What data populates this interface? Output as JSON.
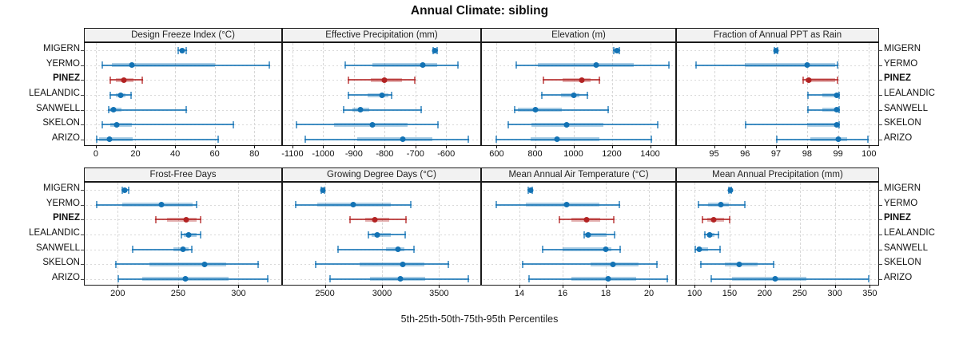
{
  "title": "Annual Climate: sibling",
  "caption": "5th-25th-50th-75th-95th Percentiles",
  "colors": {
    "default": "#1272b4",
    "highlight": "#b22222",
    "strip_bg": "#f2f2f2",
    "grid": "#d9d9d9"
  },
  "sites": [
    "MIGERN",
    "YERMO",
    "PINEZ",
    "LEALANDIC",
    "SANWELL",
    "SKELON",
    "ARIZO"
  ],
  "highlight_site": "PINEZ",
  "chart_data": {
    "type": "dot-interval",
    "note": "Each row shows 5th-25th-50th-75th-95th percentiles; thin line 5-95, thick band 25-75, dot median",
    "percentile_levels": [
      5,
      25,
      50,
      75,
      95
    ],
    "legend_position": "none",
    "grid": "dotted",
    "panels": [
      {
        "title": "Design Freeze Index (°C)",
        "xlim": [
          -5.6,
          93.6
        ],
        "ticks": [
          0,
          20,
          40,
          60,
          80
        ],
        "rows": [
          [
            41,
            42.5,
            43.5,
            44.5,
            46
          ],
          [
            3,
            8,
            18,
            60,
            88
          ],
          [
            7,
            10,
            14,
            19,
            24
          ],
          [
            7,
            10,
            12.5,
            15,
            18
          ],
          [
            6,
            7,
            9,
            13,
            46
          ],
          [
            3,
            7.5,
            10.5,
            18,
            70
          ],
          [
            0,
            1.5,
            7,
            18.5,
            62
          ]
        ]
      },
      {
        "title": "Effective Precipitation (mm)",
        "xlim": [
          -1131,
          -489
        ],
        "ticks": [
          -1100,
          -1000,
          -900,
          -800,
          -700,
          -600
        ],
        "rows": [
          [
            -646,
            -641,
            -637,
            -633,
            -628
          ],
          [
            -930,
            -840,
            -675,
            -630,
            -560
          ],
          [
            -920,
            -845,
            -800,
            -745,
            -700
          ],
          [
            -920,
            -855,
            -810,
            -788,
            -775
          ],
          [
            -935,
            -905,
            -880,
            -850,
            -680
          ],
          [
            -1090,
            -965,
            -840,
            -725,
            -625
          ],
          [
            -1060,
            -890,
            -740,
            -645,
            -525
          ]
        ]
      },
      {
        "title": "Elevation (m)",
        "xlim": [
          523,
          1531
        ],
        "ticks": [
          600,
          800,
          1000,
          1200,
          1400
        ],
        "rows": [
          [
            1208,
            1217,
            1225,
            1233,
            1242
          ],
          [
            700,
            815,
            1120,
            1315,
            1500
          ],
          [
            840,
            945,
            1045,
            1090,
            1140
          ],
          [
            830,
            935,
            1000,
            1030,
            1075
          ],
          [
            690,
            710,
            800,
            940,
            1185
          ],
          [
            655,
            780,
            965,
            1155,
            1445
          ],
          [
            595,
            775,
            915,
            1135,
            1410
          ]
        ]
      },
      {
        "title": "Fraction of Annual PPT as Rain",
        "xlim": [
          93.8,
          100.3
        ],
        "ticks": [
          95,
          96,
          97,
          98,
          99,
          100
        ],
        "rows": [
          [
            96.93,
            96.97,
            97,
            97.03,
            97.07
          ],
          [
            94.4,
            96,
            98,
            98.9,
            99
          ],
          [
            97.85,
            97.95,
            98.05,
            98.9,
            99
          ],
          [
            98,
            98.5,
            98.95,
            99,
            99.05
          ],
          [
            98,
            98.5,
            98.95,
            99,
            99.05
          ],
          [
            96,
            98,
            98.95,
            99,
            99.05
          ],
          [
            97,
            98.1,
            99,
            99.3,
            100
          ]
        ]
      },
      {
        "title": "Frost-Free Days",
        "xlim": [
          172.7,
          335.4
        ],
        "ticks": [
          200,
          250,
          300
        ],
        "rows": [
          [
            203,
            204.5,
            206,
            208,
            210
          ],
          [
            182,
            204,
            236,
            262,
            266
          ],
          [
            231,
            241,
            257,
            265,
            269
          ],
          [
            252,
            255,
            259,
            265,
            269
          ],
          [
            212,
            246,
            254,
            259,
            262
          ],
          [
            198,
            226,
            272,
            290,
            317
          ],
          [
            200,
            220,
            256,
            292,
            325
          ]
        ]
      },
      {
        "title": "Growing Degree Days (°C)",
        "xlim": [
          2132,
          3861
        ],
        "ticks": [
          2500,
          3000,
          3500
        ],
        "rows": [
          [
            2462,
            2472,
            2480,
            2489,
            2500
          ],
          [
            2240,
            2435,
            2745,
            3080,
            3260
          ],
          [
            2715,
            2855,
            2940,
            3060,
            3220
          ],
          [
            2875,
            2910,
            2955,
            3080,
            3210
          ],
          [
            2605,
            3035,
            3140,
            3195,
            3290
          ],
          [
            2410,
            2805,
            3185,
            3370,
            3590
          ],
          [
            2540,
            2895,
            3160,
            3380,
            3760
          ]
        ]
      },
      {
        "title": "Mean Annual Air Temperature (°C)",
        "xlim": [
          12.26,
          21.22
        ],
        "ticks": [
          14,
          16,
          18,
          20
        ],
        "rows": [
          [
            14.38,
            14.44,
            14.5,
            14.56,
            14.62
          ],
          [
            12.9,
            14.3,
            16.2,
            17.7,
            18.65
          ],
          [
            15.8,
            16.4,
            17.1,
            17.75,
            18.4
          ],
          [
            16.95,
            17.05,
            17.2,
            18.05,
            18.45
          ],
          [
            15.05,
            16.0,
            18.0,
            18.25,
            18.7
          ],
          [
            14.1,
            17.3,
            18.35,
            19.5,
            20.4
          ],
          [
            14.4,
            16.4,
            18.1,
            19.4,
            20.9
          ]
        ]
      },
      {
        "title": "Mean Annual Precipitation (mm)",
        "xlim": [
          74.8,
          362.1
        ],
        "ticks": [
          100,
          150,
          200,
          250,
          300,
          350
        ],
        "rows": [
          [
            148,
            149.5,
            151,
            152.5,
            154
          ],
          [
            105,
            119,
            138,
            149,
            173
          ],
          [
            110,
            118,
            127,
            142,
            151
          ],
          [
            114,
            118,
            122,
            128,
            135
          ],
          [
            100,
            103,
            107,
            119,
            138
          ],
          [
            108,
            143,
            164,
            190,
            214
          ],
          [
            123,
            154,
            215,
            259,
            349
          ]
        ]
      }
    ]
  }
}
